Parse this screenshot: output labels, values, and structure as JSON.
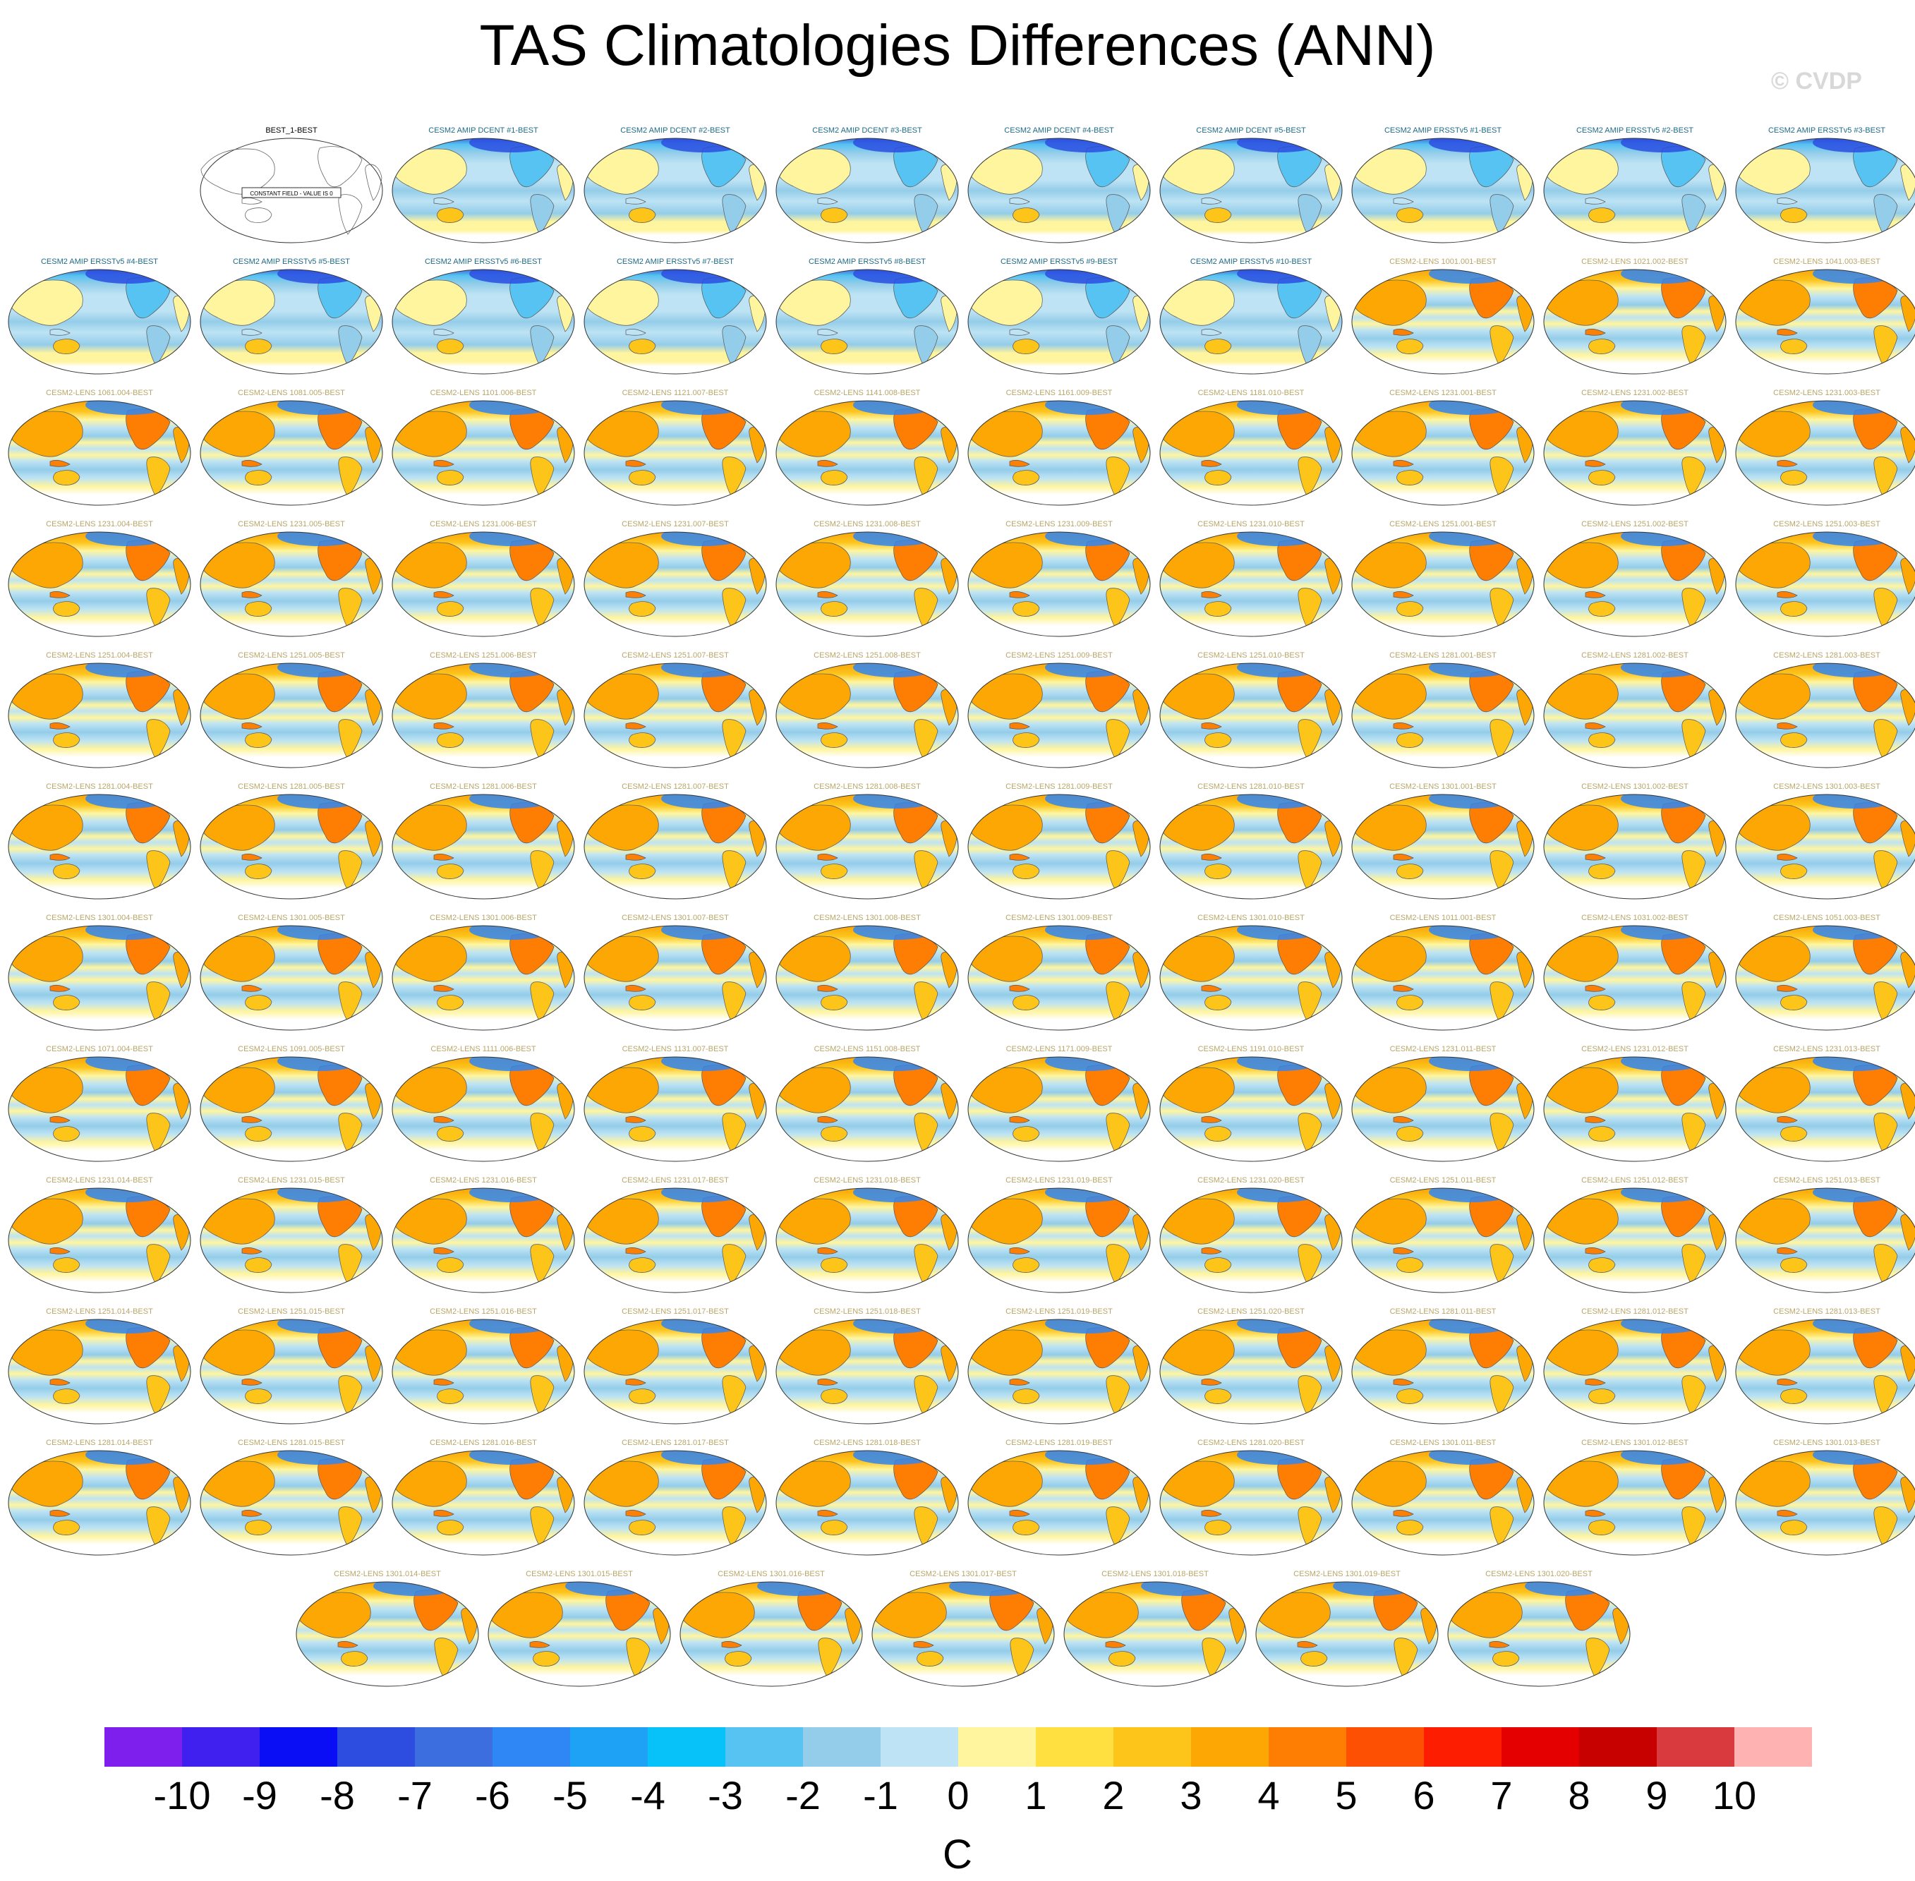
{
  "title": "TAS Climatologies Differences (ANN)",
  "watermark": "© CVDP",
  "chart_data": {
    "type": "heatmap",
    "description_map": "Mollweide-like global maps; each panel is model minus BEST annual TAS climatology",
    "colorbar": {
      "unit": "C",
      "tick_labels": [
        "-10",
        "-9",
        "-8",
        "-7",
        "-6",
        "-5",
        "-4",
        "-3",
        "-2",
        "-1",
        "0",
        "1",
        "2",
        "3",
        "4",
        "5",
        "6",
        "7",
        "8",
        "9",
        "10"
      ],
      "colors": [
        "#7f1fee",
        "#4020ee",
        "#0a0ef5",
        "#2c4de0",
        "#3d6ee0",
        "#2f86f5",
        "#1ea2f5",
        "#06c2f9",
        "#56c3f2",
        "#94cde9",
        "#bde3f4",
        "#fff59e",
        "#ffe040",
        "#fdc41a",
        "#fca704",
        "#fe7e03",
        "#fd5002",
        "#fd1d00",
        "#e40000",
        "#c70000",
        "#d83a3e",
        "#feb2b2"
      ]
    },
    "panels": [
      {
        "label": "BEST_1-BEST",
        "kind": "constant",
        "note": "CONSTANT FIELD - VALUE IS 0"
      },
      {
        "label": "CESM2 AMIP DCENT #1-BEST",
        "kind": "amip"
      },
      {
        "label": "CESM2 AMIP DCENT #2-BEST",
        "kind": "amip"
      },
      {
        "label": "CESM2 AMIP DCENT #3-BEST",
        "kind": "amip"
      },
      {
        "label": "CESM2 AMIP DCENT #4-BEST",
        "kind": "amip"
      },
      {
        "label": "CESM2 AMIP DCENT #5-BEST",
        "kind": "amip"
      },
      {
        "label": "CESM2 AMIP ERSSTv5 #1-BEST",
        "kind": "amip"
      },
      {
        "label": "CESM2 AMIP ERSSTv5 #2-BEST",
        "kind": "amip"
      },
      {
        "label": "CESM2 AMIP ERSSTv5 #3-BEST",
        "kind": "amip"
      },
      {
        "label": "CESM2 AMIP ERSSTv5 #4-BEST",
        "kind": "amip"
      },
      {
        "label": "CESM2 AMIP ERSSTv5 #5-BEST",
        "kind": "amip"
      },
      {
        "label": "CESM2 AMIP ERSSTv5 #6-BEST",
        "kind": "amip"
      },
      {
        "label": "CESM2 AMIP ERSSTv5 #7-BEST",
        "kind": "amip"
      },
      {
        "label": "CESM2 AMIP ERSSTv5 #8-BEST",
        "kind": "amip"
      },
      {
        "label": "CESM2 AMIP ERSSTv5 #9-BEST",
        "kind": "amip"
      },
      {
        "label": "CESM2 AMIP ERSSTv5 #10-BEST",
        "kind": "amip"
      },
      {
        "label": "CESM2-LENS 1001.001-BEST",
        "kind": "lens"
      },
      {
        "label": "CESM2-LENS 1021.002-BEST",
        "kind": "lens"
      },
      {
        "label": "CESM2-LENS 1041.003-BEST",
        "kind": "lens"
      },
      {
        "label": "CESM2-LENS 1061.004-BEST",
        "kind": "lens"
      },
      {
        "label": "CESM2-LENS 1081.005-BEST",
        "kind": "lens"
      },
      {
        "label": "CESM2-LENS 1101.006-BEST",
        "kind": "lens"
      },
      {
        "label": "CESM2-LENS 1121.007-BEST",
        "kind": "lens"
      },
      {
        "label": "CESM2-LENS 1141.008-BEST",
        "kind": "lens"
      },
      {
        "label": "CESM2-LENS 1161.009-BEST",
        "kind": "lens"
      },
      {
        "label": "CESM2-LENS 1181.010-BEST",
        "kind": "lens"
      },
      {
        "label": "CESM2-LENS 1231.001-BEST",
        "kind": "lens"
      },
      {
        "label": "CESM2-LENS 1231.002-BEST",
        "kind": "lens"
      },
      {
        "label": "CESM2-LENS 1231.003-BEST",
        "kind": "lens"
      },
      {
        "label": "CESM2-LENS 1231.004-BEST",
        "kind": "lens"
      },
      {
        "label": "CESM2-LENS 1231.005-BEST",
        "kind": "lens"
      },
      {
        "label": "CESM2-LENS 1231.006-BEST",
        "kind": "lens"
      },
      {
        "label": "CESM2-LENS 1231.007-BEST",
        "kind": "lens"
      },
      {
        "label": "CESM2-LENS 1231.008-BEST",
        "kind": "lens"
      },
      {
        "label": "CESM2-LENS 1231.009-BEST",
        "kind": "lens"
      },
      {
        "label": "CESM2-LENS 1231.010-BEST",
        "kind": "lens"
      },
      {
        "label": "CESM2-LENS 1251.001-BEST",
        "kind": "lens"
      },
      {
        "label": "CESM2-LENS 1251.002-BEST",
        "kind": "lens"
      },
      {
        "label": "CESM2-LENS 1251.003-BEST",
        "kind": "lens"
      },
      {
        "label": "CESM2-LENS 1251.004-BEST",
        "kind": "lens"
      },
      {
        "label": "CESM2-LENS 1251.005-BEST",
        "kind": "lens"
      },
      {
        "label": "CESM2-LENS 1251.006-BEST",
        "kind": "lens"
      },
      {
        "label": "CESM2-LENS 1251.007-BEST",
        "kind": "lens"
      },
      {
        "label": "CESM2-LENS 1251.008-BEST",
        "kind": "lens"
      },
      {
        "label": "CESM2-LENS 1251.009-BEST",
        "kind": "lens"
      },
      {
        "label": "CESM2-LENS 1251.010-BEST",
        "kind": "lens"
      },
      {
        "label": "CESM2-LENS 1281.001-BEST",
        "kind": "lens"
      },
      {
        "label": "CESM2-LENS 1281.002-BEST",
        "kind": "lens"
      },
      {
        "label": "CESM2-LENS 1281.003-BEST",
        "kind": "lens"
      },
      {
        "label": "CESM2-LENS 1281.004-BEST",
        "kind": "lens"
      },
      {
        "label": "CESM2-LENS 1281.005-BEST",
        "kind": "lens"
      },
      {
        "label": "CESM2-LENS 1281.006-BEST",
        "kind": "lens"
      },
      {
        "label": "CESM2-LENS 1281.007-BEST",
        "kind": "lens"
      },
      {
        "label": "CESM2-LENS 1281.008-BEST",
        "kind": "lens"
      },
      {
        "label": "CESM2-LENS 1281.009-BEST",
        "kind": "lens"
      },
      {
        "label": "CESM2-LENS 1281.010-BEST",
        "kind": "lens"
      },
      {
        "label": "CESM2-LENS 1301.001-BEST",
        "kind": "lens"
      },
      {
        "label": "CESM2-LENS 1301.002-BEST",
        "kind": "lens"
      },
      {
        "label": "CESM2-LENS 1301.003-BEST",
        "kind": "lens"
      },
      {
        "label": "CESM2-LENS 1301.004-BEST",
        "kind": "lens"
      },
      {
        "label": "CESM2-LENS 1301.005-BEST",
        "kind": "lens"
      },
      {
        "label": "CESM2-LENS 1301.006-BEST",
        "kind": "lens"
      },
      {
        "label": "CESM2-LENS 1301.007-BEST",
        "kind": "lens"
      },
      {
        "label": "CESM2-LENS 1301.008-BEST",
        "kind": "lens"
      },
      {
        "label": "CESM2-LENS 1301.009-BEST",
        "kind": "lens"
      },
      {
        "label": "CESM2-LENS 1301.010-BEST",
        "kind": "lens"
      },
      {
        "label": "CESM2-LENS 1011.001-BEST",
        "kind": "lens"
      },
      {
        "label": "CESM2-LENS 1031.002-BEST",
        "kind": "lens"
      },
      {
        "label": "CESM2-LENS 1051.003-BEST",
        "kind": "lens"
      },
      {
        "label": "CESM2-LENS 1071.004-BEST",
        "kind": "lens"
      },
      {
        "label": "CESM2-LENS 1091.005-BEST",
        "kind": "lens"
      },
      {
        "label": "CESM2-LENS 1111.006-BEST",
        "kind": "lens"
      },
      {
        "label": "CESM2-LENS 1131.007-BEST",
        "kind": "lens"
      },
      {
        "label": "CESM2-LENS 1151.008-BEST",
        "kind": "lens"
      },
      {
        "label": "CESM2-LENS 1171.009-BEST",
        "kind": "lens"
      },
      {
        "label": "CESM2-LENS 1191.010-BEST",
        "kind": "lens"
      },
      {
        "label": "CESM2-LENS 1231.011-BEST",
        "kind": "lens"
      },
      {
        "label": "CESM2-LENS 1231.012-BEST",
        "kind": "lens"
      },
      {
        "label": "CESM2-LENS 1231.013-BEST",
        "kind": "lens"
      },
      {
        "label": "CESM2-LENS 1231.014-BEST",
        "kind": "lens"
      },
      {
        "label": "CESM2-LENS 1231.015-BEST",
        "kind": "lens"
      },
      {
        "label": "CESM2-LENS 1231.016-BEST",
        "kind": "lens"
      },
      {
        "label": "CESM2-LENS 1231.017-BEST",
        "kind": "lens"
      },
      {
        "label": "CESM2-LENS 1231.018-BEST",
        "kind": "lens"
      },
      {
        "label": "CESM2-LENS 1231.019-BEST",
        "kind": "lens"
      },
      {
        "label": "CESM2-LENS 1231.020-BEST",
        "kind": "lens"
      },
      {
        "label": "CESM2-LENS 1251.011-BEST",
        "kind": "lens"
      },
      {
        "label": "CESM2-LENS 1251.012-BEST",
        "kind": "lens"
      },
      {
        "label": "CESM2-LENS 1251.013-BEST",
        "kind": "lens"
      },
      {
        "label": "CESM2-LENS 1251.014-BEST",
        "kind": "lens"
      },
      {
        "label": "CESM2-LENS 1251.015-BEST",
        "kind": "lens"
      },
      {
        "label": "CESM2-LENS 1251.016-BEST",
        "kind": "lens"
      },
      {
        "label": "CESM2-LENS 1251.017-BEST",
        "kind": "lens"
      },
      {
        "label": "CESM2-LENS 1251.018-BEST",
        "kind": "lens"
      },
      {
        "label": "CESM2-LENS 1251.019-BEST",
        "kind": "lens"
      },
      {
        "label": "CESM2-LENS 1251.020-BEST",
        "kind": "lens"
      },
      {
        "label": "CESM2-LENS 1281.011-BEST",
        "kind": "lens"
      },
      {
        "label": "CESM2-LENS 1281.012-BEST",
        "kind": "lens"
      },
      {
        "label": "CESM2-LENS 1281.013-BEST",
        "kind": "lens"
      },
      {
        "label": "CESM2-LENS 1281.014-BEST",
        "kind": "lens"
      },
      {
        "label": "CESM2-LENS 1281.015-BEST",
        "kind": "lens"
      },
      {
        "label": "CESM2-LENS 1281.016-BEST",
        "kind": "lens"
      },
      {
        "label": "CESM2-LENS 1281.017-BEST",
        "kind": "lens"
      },
      {
        "label": "CESM2-LENS 1281.018-BEST",
        "kind": "lens"
      },
      {
        "label": "CESM2-LENS 1281.019-BEST",
        "kind": "lens"
      },
      {
        "label": "CESM2-LENS 1281.020-BEST",
        "kind": "lens"
      },
      {
        "label": "CESM2-LENS 1301.011-BEST",
        "kind": "lens"
      },
      {
        "label": "CESM2-LENS 1301.012-BEST",
        "kind": "lens"
      },
      {
        "label": "CESM2-LENS 1301.013-BEST",
        "kind": "lens"
      },
      {
        "label": "CESM2-LENS 1301.014-BEST",
        "kind": "lens"
      },
      {
        "label": "CESM2-LENS 1301.015-BEST",
        "kind": "lens"
      },
      {
        "label": "CESM2-LENS 1301.016-BEST",
        "kind": "lens"
      },
      {
        "label": "CESM2-LENS 1301.017-BEST",
        "kind": "lens"
      },
      {
        "label": "CESM2-LENS 1301.018-BEST",
        "kind": "lens"
      },
      {
        "label": "CESM2-LENS 1301.019-BEST",
        "kind": "lens"
      },
      {
        "label": "CESM2-LENS 1301.020-BEST",
        "kind": "lens"
      }
    ]
  }
}
